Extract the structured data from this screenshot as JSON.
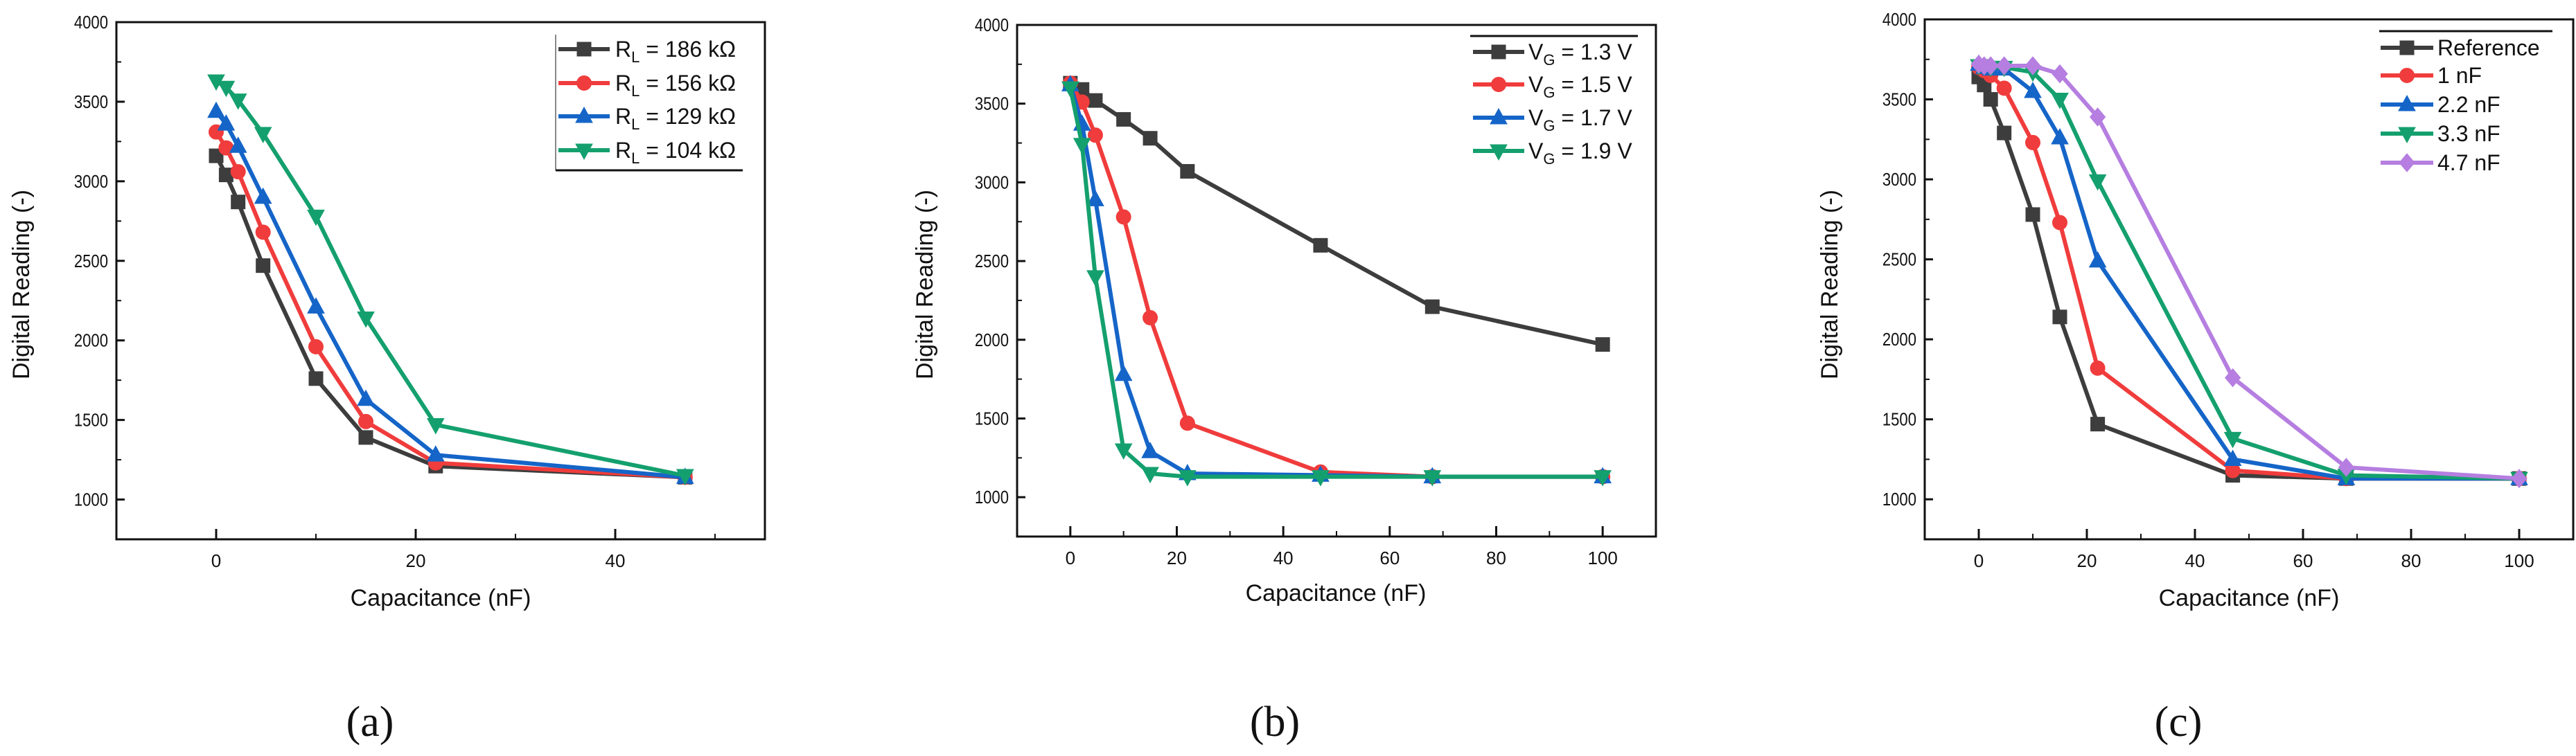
{
  "chart_data": [
    {
      "type": "line",
      "panel_label": "(a)",
      "xlabel": "Capacitance (nF)",
      "ylabel": "Digital Reading (-)",
      "xlim": [
        -10,
        55
      ],
      "ylim": [
        750,
        4000
      ],
      "xticks": [
        "0",
        "20",
        "40"
      ],
      "yticks": [
        "1000",
        "1500",
        "2000",
        "2500",
        "3000",
        "3500",
        "4000"
      ],
      "grid": false,
      "legend_position": "top-right",
      "x": [
        0,
        1,
        2.2,
        4.7,
        10,
        15,
        22,
        47
      ],
      "series": [
        {
          "symbol": "R",
          "subscript": "L",
          "text": " = 186 kΩ",
          "color": "#3d3d3d",
          "marker": "square",
          "values": [
            3160,
            3040,
            2870,
            2470,
            1760,
            1390,
            1210,
            1140
          ]
        },
        {
          "symbol": "R",
          "subscript": "L",
          "text": " = 156 kΩ",
          "color": "#f03c3c",
          "marker": "circle",
          "values": [
            3310,
            3210,
            3060,
            2680,
            1960,
            1490,
            1230,
            1140
          ]
        },
        {
          "symbol": "R",
          "subscript": "L",
          "text": " = 129 kΩ",
          "color": "#1565c8",
          "marker": "triangle-up",
          "values": [
            3440,
            3360,
            3220,
            2900,
            2210,
            1630,
            1280,
            1140
          ]
        },
        {
          "symbol": "R",
          "subscript": "L",
          "text": " = 104 kΩ",
          "color": "#14a06e",
          "marker": "triangle-down",
          "values": [
            3630,
            3590,
            3510,
            3300,
            2780,
            2140,
            1470,
            1150
          ]
        }
      ]
    },
    {
      "type": "line",
      "panel_label": "(b)",
      "xlabel": "Capacitance (nF)",
      "ylabel": "Digital Reading (-)",
      "xlim": [
        -10,
        110
      ],
      "ylim": [
        750,
        4000
      ],
      "xticks": [
        "0",
        "20",
        "40",
        "60",
        "80",
        "100"
      ],
      "yticks": [
        "1000",
        "1500",
        "2000",
        "2500",
        "3000",
        "3500",
        "4000"
      ],
      "grid": false,
      "legend_position": "top-right",
      "x": [
        0,
        2.2,
        4.7,
        10,
        15,
        22,
        47,
        68,
        100
      ],
      "series": [
        {
          "symbol": "V",
          "subscript": "G",
          "text": " = 1.3 V",
          "color": "#3d3d3d",
          "marker": "square",
          "values": [
            3630,
            3590,
            3520,
            3400,
            3280,
            3070,
            2600,
            2210,
            1970
          ]
        },
        {
          "symbol": "V",
          "subscript": "G",
          "text": " = 1.5 V",
          "color": "#f03c3c",
          "marker": "circle",
          "values": [
            3630,
            3510,
            3300,
            2780,
            2140,
            1470,
            1160,
            1130,
            1130
          ]
        },
        {
          "symbol": "V",
          "subscript": "G",
          "text": " = 1.7 V",
          "color": "#1565c8",
          "marker": "triangle-up",
          "values": [
            3620,
            3370,
            2890,
            1780,
            1290,
            1150,
            1140,
            1130,
            1130
          ]
        },
        {
          "symbol": "V",
          "subscript": "G",
          "text": " = 1.9 V",
          "color": "#14a06e",
          "marker": "triangle-down",
          "values": [
            3600,
            3240,
            2400,
            1300,
            1150,
            1130,
            1130,
            1130,
            1130
          ]
        }
      ]
    },
    {
      "type": "line",
      "panel_label": "(c)",
      "xlabel": "Capacitance (nF)",
      "ylabel": "Digital Reading (-)",
      "xlim": [
        -10,
        110
      ],
      "ylim": [
        750,
        4000
      ],
      "xticks": [
        "0",
        "20",
        "40",
        "60",
        "80",
        "100"
      ],
      "yticks": [
        "1000",
        "1500",
        "2000",
        "2500",
        "3000",
        "3500",
        "4000"
      ],
      "grid": false,
      "legend_position": "top-right",
      "x": [
        0,
        1,
        2.2,
        4.7,
        10,
        15,
        22,
        47,
        68,
        100
      ],
      "series": [
        {
          "symbol": "",
          "subscript": "",
          "text": "Reference",
          "color": "#3d3d3d",
          "marker": "square",
          "values": [
            3640,
            3590,
            3500,
            3290,
            2780,
            2140,
            1470,
            1150,
            1130,
            1130
          ]
        },
        {
          "symbol": "",
          "subscript": "",
          "text": "1 nF",
          "color": "#f03c3c",
          "marker": "circle",
          "values": [
            3700,
            3680,
            3650,
            3570,
            3230,
            2730,
            1820,
            1180,
            1130,
            1130
          ]
        },
        {
          "symbol": "",
          "subscript": "",
          "text": "2.2 nF",
          "color": "#1565c8",
          "marker": "triangle-up",
          "values": [
            3720,
            3700,
            3690,
            3690,
            3550,
            3260,
            2490,
            1250,
            1130,
            1130
          ]
        },
        {
          "symbol": "",
          "subscript": "",
          "text": "3.3 nF",
          "color": "#14a06e",
          "marker": "triangle-down",
          "values": [
            3710,
            3710,
            3700,
            3700,
            3670,
            3500,
            2990,
            1380,
            1150,
            1130
          ]
        },
        {
          "symbol": "",
          "subscript": "",
          "text": "4.7 nF",
          "color": "#b57ee0",
          "marker": "diamond",
          "values": [
            3720,
            3710,
            3710,
            3710,
            3710,
            3660,
            3390,
            1760,
            1200,
            1130
          ]
        }
      ]
    }
  ]
}
